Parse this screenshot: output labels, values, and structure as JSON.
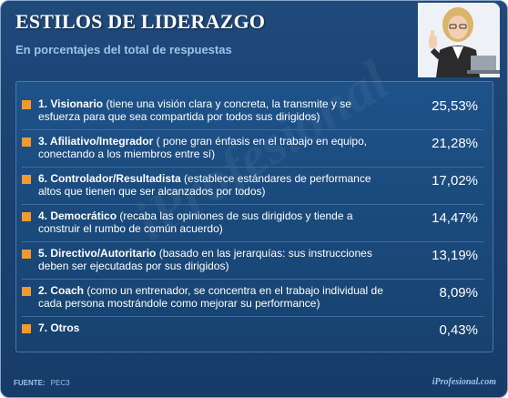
{
  "header": {
    "title": "ESTILOS DE LIDERAZGO",
    "subtitle": "En porcentajes del total de respuestas"
  },
  "chart_data": {
    "type": "table",
    "title": "ESTILOS DE LIDERAZGO",
    "subtitle": "En porcentajes del total de respuestas",
    "rows": [
      {
        "name": "1. Visionario",
        "description": " (tiene una visión clara y concreta, la transmite y se esfuerza para que sea compartida por todos sus dirigidos)",
        "value": 25.53,
        "display": "25,53%"
      },
      {
        "name": "3. Afiliativo/Integrador",
        "description": " ( pone gran énfasis en el trabajo en equipo, conectando a los miembros entre sí)",
        "value": 21.28,
        "display": "21,28%"
      },
      {
        "name": "6. Controlador/Resultadista",
        "description": " (establece estándares de performance altos que tienen que ser alcanzados por todos)",
        "value": 17.02,
        "display": "17,02%"
      },
      {
        "name": "4. Democrático",
        "description": " (recaba las opiniones de sus dirigidos y tiende a construir el rumbo de común acuerdo)",
        "value": 14.47,
        "display": "14,47%"
      },
      {
        "name": "5. Directivo/Autoritario",
        "description": " (basado en las jerarquías: sus instrucciones deben ser ejecutadas por sus dirigidos)",
        "value": 13.19,
        "display": "13,19%"
      },
      {
        "name": "2. Coach",
        "description": " (como un entrenador, se concentra en el trabajo individual de cada persona mostrándole como mejorar su performance)",
        "value": 8.09,
        "display": "8,09%"
      },
      {
        "name": "7. Otros",
        "description": "",
        "value": 0.43,
        "display": "0,43%"
      }
    ]
  },
  "footer": {
    "source_label": "FUENTE:",
    "source_value": "PEC3",
    "brand": "iProfesional.com"
  },
  "watermark": "iProfesional",
  "colors": {
    "background": "#1a4373",
    "panel": "#1e5289",
    "bullet": "#f29a2e",
    "text": "#ffffff",
    "accent_text": "#9fc3ea"
  }
}
